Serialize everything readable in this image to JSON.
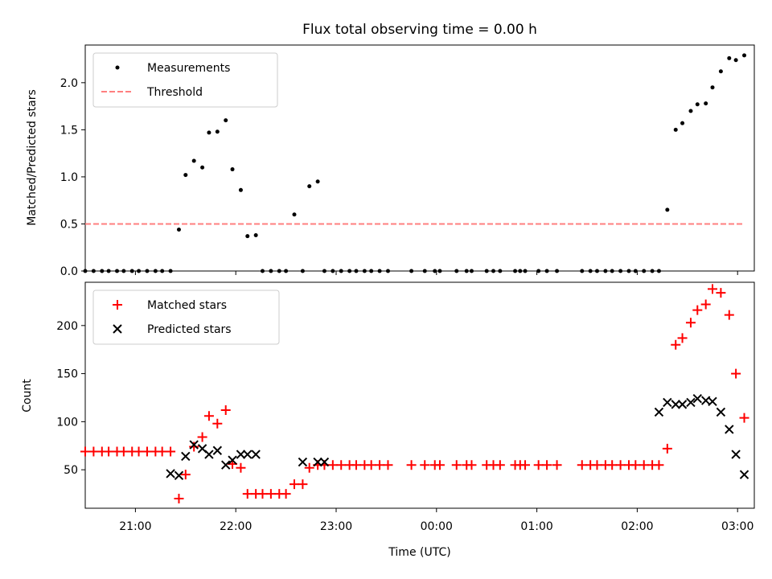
{
  "chart_data": [
    {
      "type": "scatter",
      "title": "Flux total observing time = 0.00 h",
      "xlabel": "",
      "ylabel": "Matched/Predicted stars",
      "xlim": [
        "20:30",
        "03:10"
      ],
      "ylim": [
        0,
        2.4
      ],
      "yticks": [
        0.0,
        0.5,
        1.0,
        1.5,
        2.0
      ],
      "ytick_labels": [
        "0.0",
        "0.5",
        "1.0",
        "1.5",
        "2.0"
      ],
      "legend_position": "upper-left",
      "legend": [
        "Measurements",
        "Threshold"
      ],
      "series": [
        {
          "name": "Measurements",
          "marker": "dot",
          "color": "#000000",
          "x": [
            "20:30",
            "20:35",
            "20:40",
            "20:44",
            "20:49",
            "20:53",
            "20:58",
            "21:02",
            "21:07",
            "21:12",
            "21:16",
            "21:21",
            "21:26",
            "21:30",
            "21:35",
            "21:40",
            "21:44",
            "21:49",
            "21:54",
            "21:58",
            "22:03",
            "22:07",
            "22:12",
            "22:16",
            "22:21",
            "22:26",
            "22:30",
            "22:35",
            "22:40",
            "22:44",
            "22:49",
            "22:53",
            "22:58",
            "23:03",
            "23:08",
            "23:12",
            "23:17",
            "23:21",
            "23:26",
            "23:31",
            "23:45",
            "23:53",
            "23:59",
            "24:02",
            "24:12",
            "24:18",
            "24:21",
            "24:30",
            "24:34",
            "24:38",
            "24:47",
            "24:50",
            "24:53",
            "25:01",
            "25:06",
            "25:12",
            "25:27",
            "25:32",
            "25:36",
            "25:41",
            "25:45",
            "25:50",
            "25:55",
            "25:59",
            "26:04",
            "26:09",
            "26:13",
            "26:18",
            "26:23",
            "26:27",
            "26:32",
            "26:36",
            "26:41",
            "26:45",
            "26:50",
            "26:55",
            "26:59",
            "27:04"
          ],
          "y": [
            0,
            0,
            0,
            0,
            0,
            0,
            0,
            0,
            0,
            0,
            0,
            0,
            0.44,
            1.02,
            1.17,
            1.1,
            1.47,
            1.48,
            1.6,
            1.08,
            0.86,
            0.37,
            0.38,
            0,
            0,
            0,
            0,
            0.6,
            0,
            0.9,
            0.95,
            0,
            0,
            0,
            0,
            0,
            0,
            0,
            0,
            0,
            0,
            0,
            0,
            0,
            0,
            0,
            0,
            0,
            0,
            0,
            0,
            0,
            0,
            0,
            0,
            0,
            0,
            0,
            0,
            0,
            0,
            0,
            0,
            0,
            0,
            0,
            0,
            0.65,
            1.5,
            1.57,
            1.7,
            1.77,
            1.78,
            1.95,
            2.12,
            2.26,
            2.24,
            2.29
          ]
        },
        {
          "name": "Threshold",
          "style": "dashed",
          "color": "#ff7f7f",
          "x": [
            "20:30",
            "27:04"
          ],
          "y": [
            0.5,
            0.5
          ]
        }
      ]
    },
    {
      "type": "scatter",
      "title": "",
      "xlabel": "Time (UTC)",
      "ylabel": "Count",
      "xlim": [
        "20:30",
        "03:10"
      ],
      "ylim": [
        10,
        245
      ],
      "yticks": [
        50,
        100,
        150,
        200
      ],
      "ytick_labels": [
        "50",
        "100",
        "150",
        "200"
      ],
      "xticks": [
        "21:00",
        "22:00",
        "23:00",
        "00:00",
        "01:00",
        "02:00",
        "03:00"
      ],
      "legend_position": "upper-left",
      "legend": [
        "Matched stars",
        "Predicted stars"
      ],
      "series": [
        {
          "name": "Matched stars",
          "marker": "plus",
          "color": "#ff0000",
          "x": [
            "20:30",
            "20:35",
            "20:40",
            "20:44",
            "20:49",
            "20:53",
            "20:58",
            "21:02",
            "21:07",
            "21:12",
            "21:16",
            "21:21",
            "21:26",
            "21:30",
            "21:35",
            "21:40",
            "21:44",
            "21:49",
            "21:54",
            "21:58",
            "22:03",
            "22:07",
            "22:12",
            "22:16",
            "22:21",
            "22:26",
            "22:30",
            "22:35",
            "22:40",
            "22:44",
            "22:49",
            "22:53",
            "22:58",
            "23:03",
            "23:08",
            "23:12",
            "23:17",
            "23:21",
            "23:26",
            "23:31",
            "23:45",
            "23:53",
            "23:59",
            "24:02",
            "24:12",
            "24:18",
            "24:21",
            "24:30",
            "24:34",
            "24:38",
            "24:47",
            "24:50",
            "24:53",
            "25:01",
            "25:06",
            "25:12",
            "25:27",
            "25:32",
            "25:36",
            "25:41",
            "25:45",
            "25:50",
            "25:55",
            "25:59",
            "26:04",
            "26:09",
            "26:13",
            "26:18",
            "26:23",
            "26:27",
            "26:32",
            "26:36",
            "26:41",
            "26:45",
            "26:50",
            "26:55",
            "26:59",
            "27:04"
          ],
          "y": [
            69,
            69,
            69,
            69,
            69,
            69,
            69,
            69,
            69,
            69,
            69,
            69,
            20,
            45,
            74,
            84,
            106,
            98,
            112,
            56,
            52,
            25,
            25,
            25,
            25,
            25,
            25,
            35,
            35,
            52,
            55,
            55,
            55,
            55,
            55,
            55,
            55,
            55,
            55,
            55,
            55,
            55,
            55,
            55,
            55,
            55,
            55,
            55,
            55,
            55,
            55,
            55,
            55,
            55,
            55,
            55,
            55,
            55,
            55,
            55,
            55,
            55,
            55,
            55,
            55,
            55,
            55,
            72,
            180,
            187,
            203,
            216,
            222,
            238,
            234,
            211,
            150,
            104
          ]
        },
        {
          "name": "Predicted stars",
          "marker": "x",
          "color": "#000000",
          "x": [
            "21:21",
            "21:26",
            "21:30",
            "21:35",
            "21:40",
            "21:44",
            "21:49",
            "21:54",
            "21:58",
            "22:03",
            "22:07",
            "22:12",
            "22:40",
            "22:49",
            "22:53",
            "26:13",
            "26:18",
            "26:23",
            "26:27",
            "26:32",
            "26:36",
            "26:41",
            "26:45",
            "26:50",
            "26:55",
            "26:59",
            "27:04"
          ],
          "y": [
            46,
            44,
            64,
            76,
            72,
            66,
            70,
            55,
            60,
            66,
            66,
            66,
            58,
            58,
            58,
            110,
            120,
            118,
            118,
            120,
            124,
            122,
            121,
            110,
            92,
            66,
            45
          ]
        }
      ]
    }
  ]
}
